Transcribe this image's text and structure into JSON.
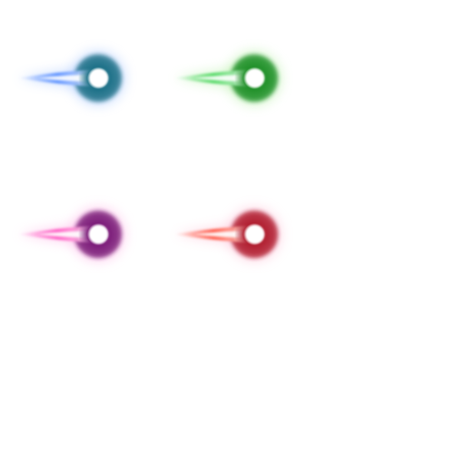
{
  "sprites": [
    {
      "name": "blue-comet",
      "glow": "#1a6f86",
      "halo": "#a9c8ff",
      "tail": "#3f7dff",
      "core": "#ffffff"
    },
    {
      "name": "green-comet",
      "glow": "#1f8f28",
      "halo": "#b8f0a8",
      "tail": "#33d14a",
      "core": "#ffffff"
    },
    {
      "name": "purple-comet",
      "glow": "#7a1a78",
      "halo": "#ffb3e6",
      "tail": "#ff3fb8",
      "core": "#ffffff"
    },
    {
      "name": "red-comet",
      "glow": "#b01d2e",
      "halo": "#ffc0d6",
      "tail": "#ff3a22",
      "core": "#ffffff"
    }
  ]
}
